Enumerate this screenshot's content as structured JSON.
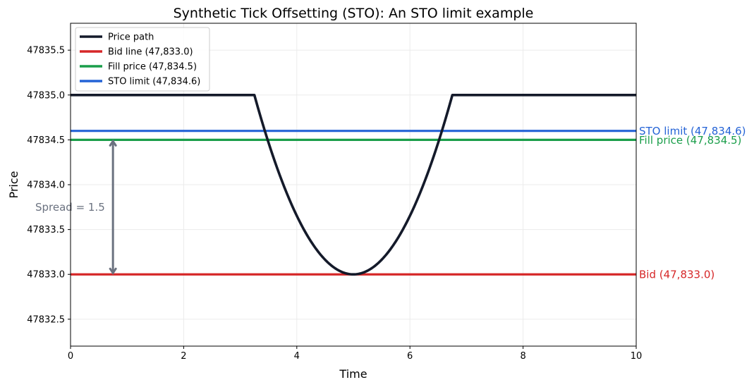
{
  "chart_data": {
    "type": "line",
    "title": "Synthetic Tick Offsetting (STO): An STO limit example",
    "xlabel": "Time",
    "ylabel": "Price",
    "xlim": [
      0,
      10
    ],
    "ylim": [
      47832.2,
      47835.8
    ],
    "xticks": [
      0,
      2,
      4,
      6,
      8,
      10
    ],
    "xtick_labels": [
      "0",
      "2",
      "4",
      "6",
      "8",
      "10"
    ],
    "yticks": [
      47832.5,
      47833.0,
      47833.5,
      47834.0,
      47834.5,
      47835.0,
      47835.5
    ],
    "ytick_labels": [
      "47832.5",
      "47833.0",
      "47833.5",
      "47834.0",
      "47834.5",
      "47835.0",
      "47835.5"
    ],
    "grid": true,
    "legend_position": "top-left",
    "series": [
      {
        "name": "Price path",
        "color": "#141a2a",
        "kind": "curve",
        "flat_value": 47835.0,
        "dip_start": 3.25,
        "dip_end": 6.75,
        "dip_center": 5.0,
        "dip_min": 47833.0
      },
      {
        "name": "Bid line (47,833.0)",
        "color": "#d62728",
        "kind": "hline",
        "value": 47833.0,
        "right_label": "Bid (47,833.0)"
      },
      {
        "name": "Fill price (47,834.5)",
        "color": "#1a9e4a",
        "kind": "hline",
        "value": 47834.5,
        "right_label": "Fill price (47,834.5)"
      },
      {
        "name": "STO limit (47,834.6)",
        "color": "#2463d6",
        "kind": "hline",
        "value": 47834.6,
        "right_label": "STO limit (47,834.6)"
      }
    ],
    "annotations": [
      {
        "text": "Spread = 1.5",
        "x": 0.75,
        "y_from": 47833.0,
        "y_to": 47834.5,
        "color": "#6b7280"
      }
    ]
  }
}
